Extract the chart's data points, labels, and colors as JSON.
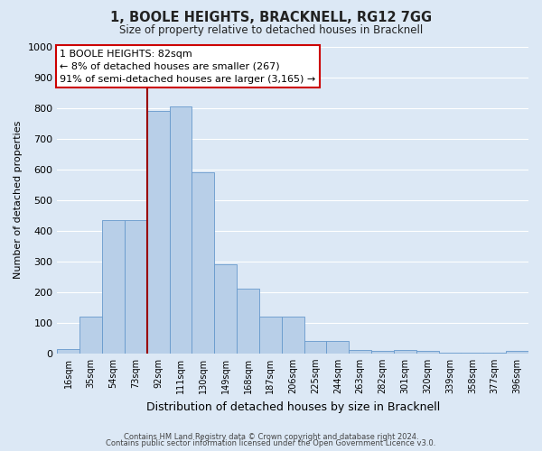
{
  "title": "1, BOOLE HEIGHTS, BRACKNELL, RG12 7GG",
  "subtitle": "Size of property relative to detached houses in Bracknell",
  "xlabel": "Distribution of detached houses by size in Bracknell",
  "ylabel": "Number of detached properties",
  "bar_labels": [
    "16sqm",
    "35sqm",
    "54sqm",
    "73sqm",
    "92sqm",
    "111sqm",
    "130sqm",
    "149sqm",
    "168sqm",
    "187sqm",
    "206sqm",
    "225sqm",
    "244sqm",
    "263sqm",
    "282sqm",
    "301sqm",
    "320sqm",
    "339sqm",
    "358sqm",
    "377sqm",
    "396sqm"
  ],
  "bar_values": [
    15,
    120,
    435,
    435,
    790,
    805,
    590,
    290,
    210,
    120,
    120,
    40,
    40,
    10,
    7,
    10,
    7,
    3,
    3,
    2,
    8
  ],
  "bar_color": "#b8cfe8",
  "bar_edge_color": "#6699cc",
  "background_color": "#dce8f5",
  "plot_background": "#dce8f5",
  "grid_color": "#ffffff",
  "ylim": [
    0,
    1000
  ],
  "yticks": [
    0,
    100,
    200,
    300,
    400,
    500,
    600,
    700,
    800,
    900,
    1000
  ],
  "vline_x_idx": 4,
  "vline_color": "#990000",
  "annotation_title": "1 BOOLE HEIGHTS: 82sqm",
  "annotation_line1": "← 8% of detached houses are smaller (267)",
  "annotation_line2": "91% of semi-detached houses are larger (3,165) →",
  "annotation_box_color": "#ffffff",
  "annotation_box_edge": "#cc0000",
  "footer1": "Contains HM Land Registry data © Crown copyright and database right 2024.",
  "footer2": "Contains public sector information licensed under the Open Government Licence v3.0."
}
